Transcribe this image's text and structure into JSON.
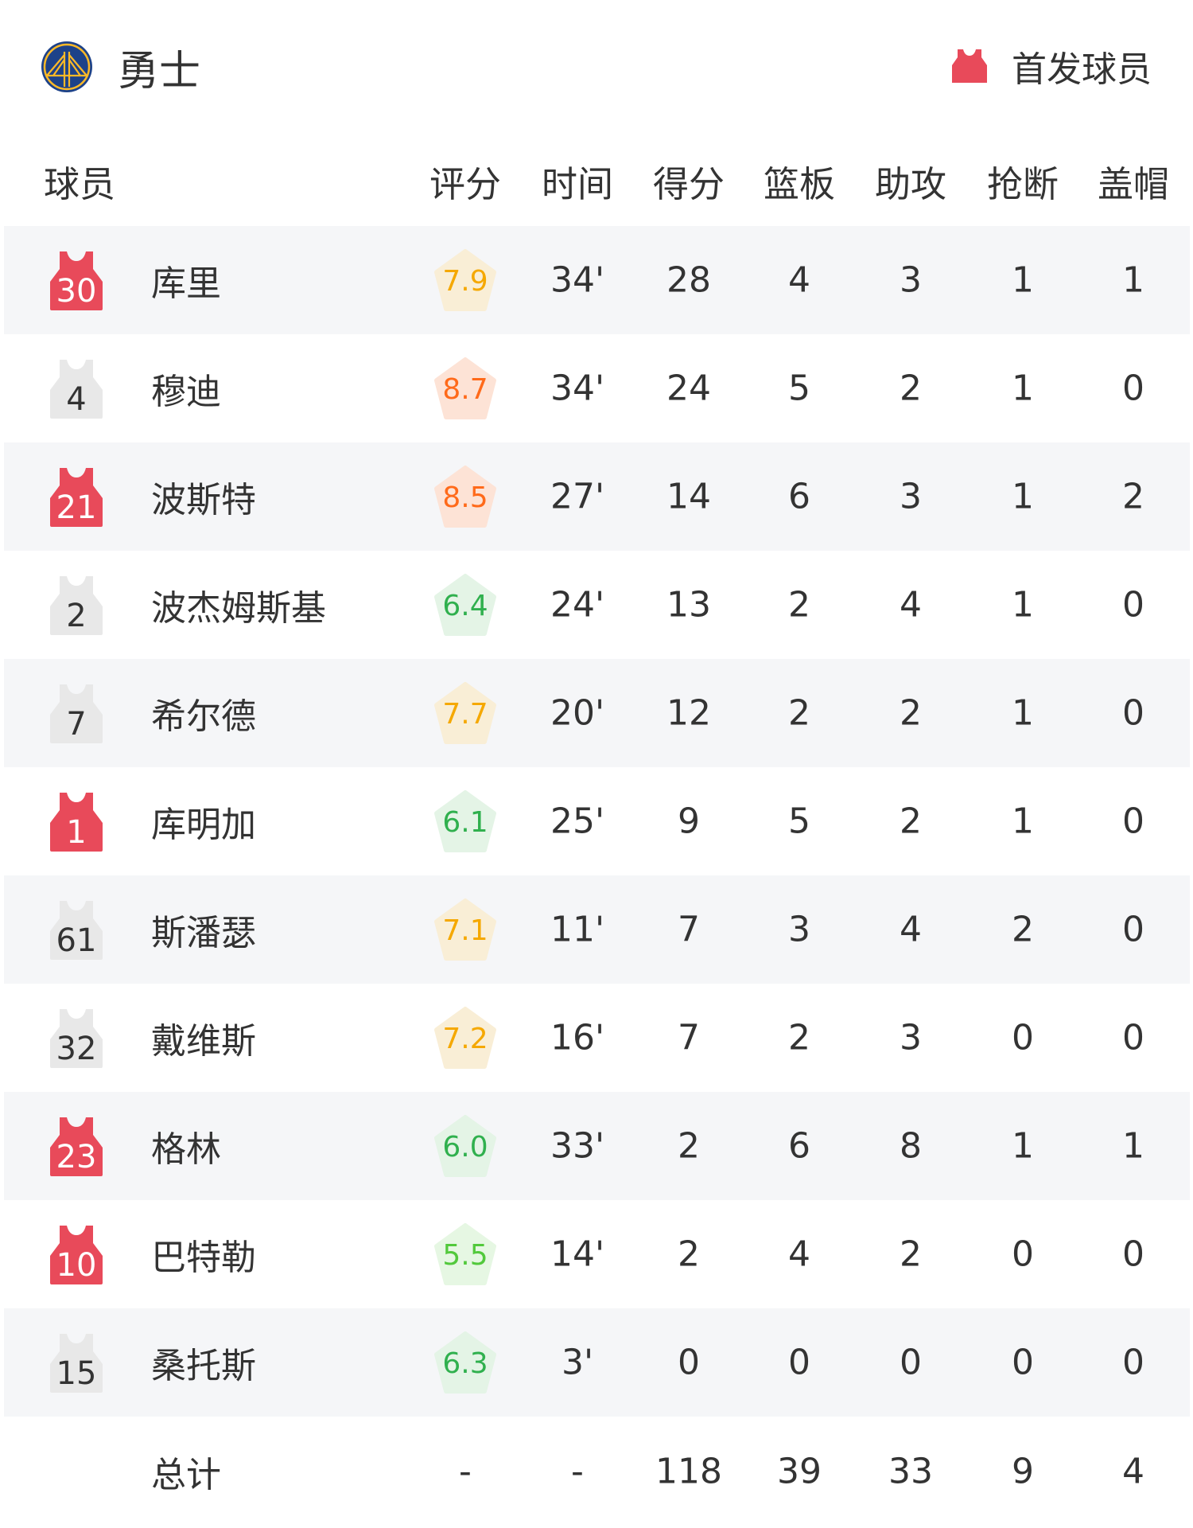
{
  "team": {
    "name": "勇士",
    "logo_icon": "warriors-logo-icon"
  },
  "legend": {
    "label": "首发球员",
    "icon": "jersey-icon",
    "color": "#e84a5a"
  },
  "columns": {
    "player": "球员",
    "rating": "评分",
    "time": "时间",
    "points": "得分",
    "rebounds": "篮板",
    "assists": "助攻",
    "steals": "抢断",
    "blocks": "盖帽"
  },
  "colors": {
    "starter": "#e84a5a",
    "bench": "#e8e8e8",
    "row_alt": "#f5f6f8"
  },
  "players": [
    {
      "number": "30",
      "name": "库里",
      "starter": true,
      "rating": "7.9",
      "tier": "gold",
      "time": "34'",
      "pts": "28",
      "reb": "4",
      "ast": "3",
      "stl": "1",
      "blk": "1"
    },
    {
      "number": "4",
      "name": "穆迪",
      "starter": false,
      "rating": "8.7",
      "tier": "orange",
      "time": "34'",
      "pts": "24",
      "reb": "5",
      "ast": "2",
      "stl": "1",
      "blk": "0"
    },
    {
      "number": "21",
      "name": "波斯特",
      "starter": true,
      "rating": "8.5",
      "tier": "orange",
      "time": "27'",
      "pts": "14",
      "reb": "6",
      "ast": "3",
      "stl": "1",
      "blk": "2"
    },
    {
      "number": "2",
      "name": "波杰姆斯基",
      "starter": false,
      "rating": "6.4",
      "tier": "green",
      "time": "24'",
      "pts": "13",
      "reb": "2",
      "ast": "4",
      "stl": "1",
      "blk": "0"
    },
    {
      "number": "7",
      "name": "希尔德",
      "starter": false,
      "rating": "7.7",
      "tier": "gold",
      "time": "20'",
      "pts": "12",
      "reb": "2",
      "ast": "2",
      "stl": "1",
      "blk": "0"
    },
    {
      "number": "1",
      "name": "库明加",
      "starter": true,
      "rating": "6.1",
      "tier": "green",
      "time": "25'",
      "pts": "9",
      "reb": "5",
      "ast": "2",
      "stl": "1",
      "blk": "0"
    },
    {
      "number": "61",
      "name": "斯潘瑟",
      "starter": false,
      "rating": "7.1",
      "tier": "gold",
      "time": "11'",
      "pts": "7",
      "reb": "3",
      "ast": "4",
      "stl": "2",
      "blk": "0"
    },
    {
      "number": "32",
      "name": "戴维斯",
      "starter": false,
      "rating": "7.2",
      "tier": "gold",
      "time": "16'",
      "pts": "7",
      "reb": "2",
      "ast": "3",
      "stl": "0",
      "blk": "0"
    },
    {
      "number": "23",
      "name": "格林",
      "starter": true,
      "rating": "6.0",
      "tier": "green",
      "time": "33'",
      "pts": "2",
      "reb": "6",
      "ast": "8",
      "stl": "1",
      "blk": "1"
    },
    {
      "number": "10",
      "name": "巴特勒",
      "starter": true,
      "rating": "5.5",
      "tier": "lightgreen",
      "time": "14'",
      "pts": "2",
      "reb": "4",
      "ast": "2",
      "stl": "0",
      "blk": "0"
    },
    {
      "number": "15",
      "name": "桑托斯",
      "starter": false,
      "rating": "6.3",
      "tier": "green",
      "time": "3'",
      "pts": "0",
      "reb": "0",
      "ast": "0",
      "stl": "0",
      "blk": "0"
    }
  ],
  "totals": {
    "label": "总计",
    "rating": "-",
    "time": "-",
    "pts": "118",
    "reb": "39",
    "ast": "33",
    "stl": "9",
    "blk": "4"
  },
  "tiers": {
    "gold": {
      "text": "#f5a800",
      "bg": "#f9eed6"
    },
    "orange": {
      "text": "#ff6a1a",
      "bg": "#fde3d6"
    },
    "green": {
      "text": "#30b04e",
      "bg": "#e4f4e6"
    },
    "lightgreen": {
      "text": "#52c93c",
      "bg": "#e6f7e3"
    }
  }
}
